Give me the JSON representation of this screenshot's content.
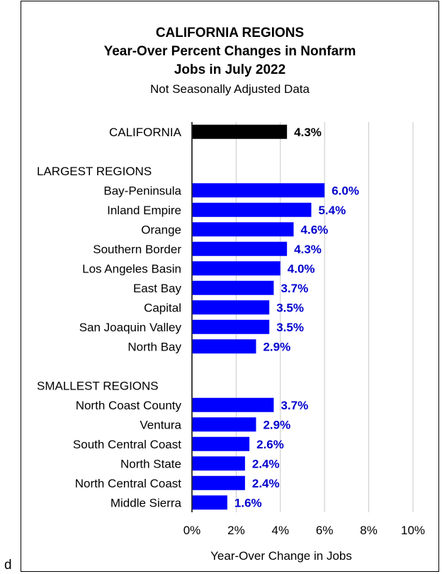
{
  "titles": {
    "line1": "CALIFORNIA REGIONS",
    "line2": "Year-Over Percent Changes in Nonfarm",
    "line3": "Jobs in July 2022",
    "subtitle": "Not Seasonally Adjusted Data"
  },
  "stray_text": "d",
  "colors": {
    "total": "#000000",
    "region": "#0000ff",
    "region_label": "#0000cc",
    "grid": "#c8c8c8"
  },
  "chart_data": {
    "type": "bar",
    "orientation": "horizontal",
    "title": "CALIFORNIA REGIONS Year-Over Percent Changes in Nonfarm Jobs in July 2022",
    "subtitle": "Not Seasonally Adjusted Data",
    "xlabel": "Year-Over Change in Jobs",
    "ylabel": "",
    "xlim": [
      0,
      10
    ],
    "xticks": [
      "0%",
      "2%",
      "4%",
      "6%",
      "8%",
      "10%"
    ],
    "grid": "vertical",
    "groups": [
      {
        "heading": "",
        "bars": [
          {
            "label": "CALIFORNIA",
            "value": 4.3,
            "display": "4.3%",
            "kind": "total"
          }
        ]
      },
      {
        "heading": "LARGEST REGIONS",
        "bars": [
          {
            "label": "Bay-Peninsula",
            "value": 6.0,
            "display": "6.0%",
            "kind": "region"
          },
          {
            "label": "Inland Empire",
            "value": 5.4,
            "display": "5.4%",
            "kind": "region"
          },
          {
            "label": "Orange",
            "value": 4.6,
            "display": "4.6%",
            "kind": "region"
          },
          {
            "label": "Southern Border",
            "value": 4.3,
            "display": "4.3%",
            "kind": "region"
          },
          {
            "label": "Los Angeles Basin",
            "value": 4.0,
            "display": "4.0%",
            "kind": "region"
          },
          {
            "label": "East Bay",
            "value": 3.7,
            "display": "3.7%",
            "kind": "region"
          },
          {
            "label": "Capital",
            "value": 3.5,
            "display": "3.5%",
            "kind": "region"
          },
          {
            "label": "San Joaquin Valley",
            "value": 3.5,
            "display": "3.5%",
            "kind": "region"
          },
          {
            "label": "North Bay",
            "value": 2.9,
            "display": "2.9%",
            "kind": "region"
          }
        ]
      },
      {
        "heading": "SMALLEST REGIONS",
        "bars": [
          {
            "label": "North Coast County",
            "value": 3.7,
            "display": "3.7%",
            "kind": "region"
          },
          {
            "label": "Ventura",
            "value": 2.9,
            "display": "2.9%",
            "kind": "region"
          },
          {
            "label": "South Central Coast",
            "value": 2.6,
            "display": "2.6%",
            "kind": "region"
          },
          {
            "label": "North State",
            "value": 2.4,
            "display": "2.4%",
            "kind": "region"
          },
          {
            "label": "North Central Coast",
            "value": 2.4,
            "display": "2.4%",
            "kind": "region"
          },
          {
            "label": "Middle Sierra",
            "value": 1.6,
            "display": "1.6%",
            "kind": "region"
          }
        ]
      }
    ]
  }
}
